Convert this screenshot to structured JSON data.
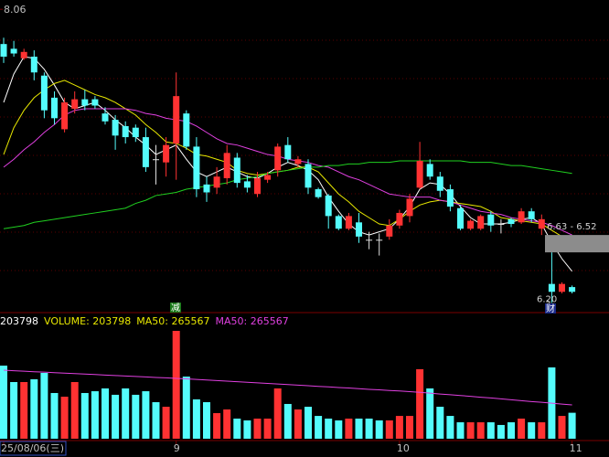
{
  "chart_data": {
    "type": "candlestick",
    "categories": [
      "25/08/06(三)",
      null,
      null,
      null,
      null,
      null,
      null,
      null,
      null,
      null,
      null,
      null,
      null,
      null,
      null,
      null,
      null,
      "9",
      null,
      null,
      null,
      null,
      null,
      null,
      null,
      null,
      null,
      null,
      null,
      null,
      null,
      null,
      null,
      null,
      null,
      null,
      null,
      null,
      null,
      "10",
      null,
      null,
      null,
      null,
      null,
      null,
      null,
      null,
      null,
      null,
      null,
      null,
      null,
      null,
      null,
      null,
      "11"
    ],
    "open": [
      7.84,
      7.81,
      7.75,
      7.76,
      7.64,
      7.5,
      7.3,
      7.43,
      7.49,
      7.49,
      7.4,
      7.36,
      7.32,
      7.31,
      7.25,
      7.11,
      7.09,
      7.21,
      7.4,
      7.19,
      6.95,
      6.93,
      6.99,
      7.12,
      6.97,
      6.89,
      6.98,
      7.04,
      7.2,
      7.08,
      7.08,
      6.92,
      6.88,
      6.75,
      6.67,
      6.71,
      6.6,
      6.6,
      6.62,
      6.69,
      6.75,
      6.93,
      7.08,
      7.0,
      6.92,
      6.8,
      6.67,
      6.67,
      6.76,
      6.7,
      6.73,
      6.71,
      6.78,
      6.67,
      6.32,
      6.27,
      6.3
    ],
    "high": [
      7.88,
      7.86,
      7.81,
      7.8,
      7.66,
      7.54,
      7.5,
      7.54,
      7.55,
      7.51,
      7.44,
      7.39,
      7.35,
      7.33,
      7.31,
      7.2,
      7.25,
      7.66,
      7.42,
      7.25,
      7.0,
      7.06,
      7.2,
      7.15,
      7.01,
      7.03,
      7.03,
      7.21,
      7.25,
      7.13,
      7.11,
      6.93,
      6.89,
      6.76,
      6.77,
      6.77,
      6.65,
      6.64,
      6.73,
      6.79,
      6.89,
      7.22,
      7.11,
      7.03,
      6.95,
      6.82,
      6.73,
      6.76,
      6.78,
      6.73,
      6.74,
      6.8,
      6.8,
      6.76,
      6.52,
      6.33,
      6.31
    ],
    "low": [
      7.72,
      7.76,
      7.74,
      7.61,
      7.37,
      7.33,
      7.28,
      7.4,
      7.42,
      7.43,
      7.33,
      7.17,
      7.21,
      7.22,
      7.03,
      6.95,
      7.0,
      6.98,
      7.17,
      6.87,
      6.84,
      6.89,
      6.95,
      6.93,
      6.9,
      6.87,
      6.96,
      7.0,
      7.09,
      7.06,
      6.89,
      6.86,
      6.67,
      6.66,
      6.66,
      6.58,
      6.54,
      6.5,
      6.6,
      6.67,
      6.71,
      6.92,
      6.98,
      6.87,
      6.78,
      6.66,
      6.66,
      6.66,
      6.65,
      6.64,
      6.68,
      6.7,
      6.71,
      6.63,
      6.2,
      6.26,
      6.26
    ],
    "close": [
      7.76,
      7.78,
      7.79,
      7.66,
      7.42,
      7.37,
      7.47,
      7.49,
      7.45,
      7.45,
      7.35,
      7.26,
      7.25,
      7.25,
      7.06,
      7.11,
      7.2,
      7.51,
      7.19,
      6.92,
      6.9,
      7.0,
      7.15,
      6.96,
      6.93,
      6.99,
      7.01,
      7.19,
      7.11,
      7.11,
      6.93,
      6.87,
      6.75,
      6.67,
      6.75,
      6.62,
      6.6,
      6.6,
      6.69,
      6.77,
      6.86,
      7.1,
      7.0,
      6.91,
      6.81,
      6.67,
      6.72,
      6.75,
      6.69,
      6.7,
      6.7,
      6.78,
      6.73,
      6.73,
      6.27,
      6.32,
      6.27
    ],
    "up_color": "#ff3232",
    "down_color": "#54fcfc",
    "flat_color": "#e0e0e0",
    "ylim": [
      6.15,
      8.09
    ],
    "yticks": [
      8.06
    ],
    "lines": [
      {
        "color": "#ffffff",
        "values": [
          7.47,
          7.65,
          7.76,
          7.75,
          7.68,
          7.58,
          7.47,
          7.43,
          7.45,
          7.47,
          7.42,
          7.36,
          7.31,
          7.25,
          7.2,
          7.14,
          7.17,
          7.2,
          7.11,
          7.03,
          7.0,
          7.03,
          7.06,
          7.03,
          7.0,
          6.99,
          7.02,
          7.06,
          7.09,
          7.07,
          7.04,
          6.98,
          6.87,
          6.78,
          6.7,
          6.65,
          6.63,
          6.65,
          6.67,
          6.73,
          6.81,
          6.92,
          6.96,
          6.95,
          6.89,
          6.81,
          6.74,
          6.7,
          6.7,
          6.7,
          6.71,
          6.73,
          6.74,
          6.7,
          6.58,
          6.48,
          6.4
        ]
      },
      {
        "color": "#e8e800",
        "values": [
          7.14,
          7.31,
          7.42,
          7.5,
          7.55,
          7.59,
          7.61,
          7.58,
          7.55,
          7.52,
          7.5,
          7.47,
          7.43,
          7.39,
          7.33,
          7.28,
          7.22,
          7.21,
          7.18,
          7.14,
          7.13,
          7.11,
          7.09,
          7.04,
          7.02,
          7.01,
          7.02,
          7.03,
          7.04,
          7.06,
          7.06,
          7.03,
          6.96,
          6.89,
          6.84,
          6.78,
          6.74,
          6.7,
          6.69,
          6.73,
          6.78,
          6.82,
          6.84,
          6.85,
          6.84,
          6.83,
          6.82,
          6.81,
          6.78,
          6.74,
          6.73,
          6.72,
          6.71,
          6.7,
          6.66,
          6.62,
          6.58
        ]
      },
      {
        "color": "#e040e0",
        "values": [
          7.06,
          7.11,
          7.17,
          7.22,
          7.28,
          7.33,
          7.39,
          7.42,
          7.43,
          7.43,
          7.43,
          7.43,
          7.43,
          7.42,
          7.4,
          7.39,
          7.37,
          7.36,
          7.35,
          7.32,
          7.28,
          7.24,
          7.21,
          7.2,
          7.18,
          7.16,
          7.14,
          7.13,
          7.11,
          7.1,
          7.09,
          7.07,
          7.06,
          7.03,
          7.0,
          6.98,
          6.95,
          6.92,
          6.89,
          6.88,
          6.87,
          6.87,
          6.87,
          6.85,
          6.84,
          6.82,
          6.8,
          6.78,
          6.77,
          6.76,
          6.74,
          6.73,
          6.72,
          6.71,
          6.69,
          6.66,
          6.63
        ]
      },
      {
        "color": "#20d020",
        "values": [
          6.67,
          6.68,
          6.69,
          6.71,
          6.72,
          6.73,
          6.74,
          6.75,
          6.76,
          6.77,
          6.78,
          6.79,
          6.8,
          6.83,
          6.85,
          6.88,
          6.89,
          6.9,
          6.92,
          6.93,
          6.94,
          6.95,
          6.96,
          6.98,
          6.99,
          7.0,
          7.02,
          7.03,
          7.04,
          7.05,
          7.06,
          7.06,
          7.07,
          7.07,
          7.08,
          7.08,
          7.09,
          7.09,
          7.09,
          7.1,
          7.1,
          7.1,
          7.1,
          7.1,
          7.1,
          7.1,
          7.09,
          7.09,
          7.09,
          7.08,
          7.07,
          7.07,
          7.06,
          7.05,
          7.04,
          7.03,
          7.02
        ]
      }
    ],
    "low_label": {
      "value": 6.2,
      "label": "6.20"
    },
    "gap": {
      "range": [
        6.52,
        6.63
      ],
      "label": "6.63 - 6.52"
    },
    "volume": {
      "values": [
        574000,
        445000,
        445000,
        467000,
        517000,
        359000,
        330000,
        445000,
        359000,
        373000,
        395000,
        345000,
        395000,
        345000,
        373000,
        287000,
        251000,
        847000,
        488000,
        309000,
        287000,
        201000,
        230000,
        158000,
        144000,
        158000,
        158000,
        395000,
        273000,
        230000,
        251000,
        179000,
        158000,
        144000,
        158000,
        158000,
        158000,
        144000,
        144000,
        179000,
        179000,
        546000,
        395000,
        251000,
        179000,
        129000,
        129000,
        129000,
        129000,
        108000,
        129000,
        158000,
        129000,
        129000,
        560000,
        179000,
        203798
      ],
      "ylim": [
        0,
        969000
      ],
      "ma": {
        "color": "#e040e0",
        "values": [
          538000,
          534000,
          530000,
          526000,
          523000,
          519000,
          515000,
          511000,
          508000,
          504000,
          500000,
          496000,
          493000,
          489000,
          485000,
          481000,
          478000,
          474000,
          470000,
          466000,
          461000,
          457000,
          452000,
          448000,
          443000,
          439000,
          434000,
          430000,
          425000,
          421000,
          416000,
          411000,
          407000,
          402000,
          398000,
          393000,
          388000,
          384000,
          379000,
          375000,
          370000,
          364000,
          358000,
          351000,
          345000,
          339000,
          333000,
          326000,
          320000,
          313000,
          306000,
          299000,
          292000,
          286000,
          279000,
          272000,
          265567
        ]
      },
      "legend": [
        {
          "text": "203798",
          "color": "#ffffff"
        },
        {
          "text": "VOLUME: 203798",
          "color": "#e8e800"
        },
        {
          "text": "MA50: 265567",
          "color": "#e8e800"
        },
        {
          "text": "MA50: 265567",
          "color": "#e040e0"
        }
      ]
    }
  },
  "markers": [
    "减",
    "财"
  ]
}
